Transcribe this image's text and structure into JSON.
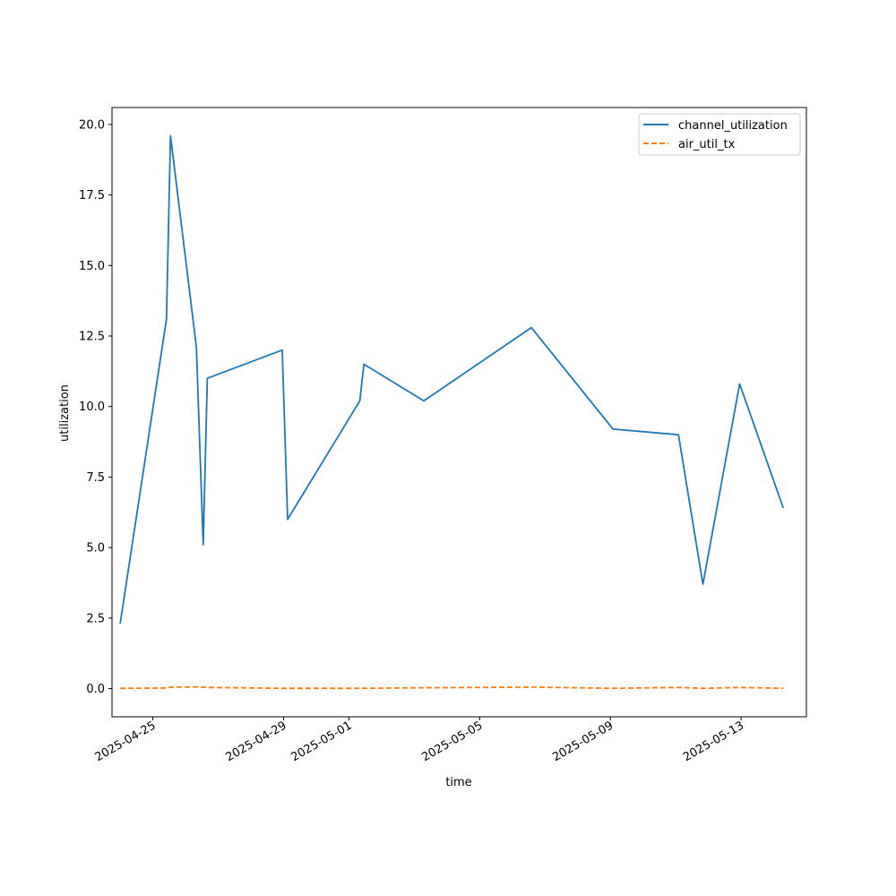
{
  "chart_data": {
    "type": "line",
    "title": "",
    "xlabel": "time",
    "ylabel": "utilization",
    "x_ticks": [
      "2025-04-25",
      "2025-04-29",
      "2025-05-01",
      "2025-05-05",
      "2025-05-09",
      "2025-05-13"
    ],
    "y_ticks": [
      0.0,
      2.5,
      5.0,
      7.5,
      10.0,
      12.5,
      15.0,
      17.5,
      20.0
    ],
    "y_tick_labels": [
      "0.0",
      "2.5",
      "5.0",
      "7.5",
      "10.0",
      "12.5",
      "15.0",
      "17.5",
      "20.0"
    ],
    "xlim": [
      "2025-04-23T18:00",
      "2025-05-15T00:00"
    ],
    "ylim": [
      -1.0,
      20.6
    ],
    "grid": false,
    "legend_position": "top-right",
    "series": [
      {
        "name": "channel_utilization",
        "color": "#1f77b4",
        "style": "solid",
        "points": [
          {
            "x": "2025-04-24T00:00",
            "y": 2.3
          },
          {
            "x": "2025-04-25T10:00",
            "y": 13.1
          },
          {
            "x": "2025-04-25T13:00",
            "y": 19.6
          },
          {
            "x": "2025-04-26T08:00",
            "y": 12.1
          },
          {
            "x": "2025-04-26T13:00",
            "y": 5.1
          },
          {
            "x": "2025-04-26T16:00",
            "y": 11.0
          },
          {
            "x": "2025-04-28T23:00",
            "y": 12.0
          },
          {
            "x": "2025-04-29T03:00",
            "y": 6.0
          },
          {
            "x": "2025-05-01T08:00",
            "y": 10.2
          },
          {
            "x": "2025-05-01T11:00",
            "y": 11.5
          },
          {
            "x": "2025-05-03T07:00",
            "y": 10.2
          },
          {
            "x": "2025-05-06T14:00",
            "y": 12.8
          },
          {
            "x": "2025-05-09T02:00",
            "y": 9.2
          },
          {
            "x": "2025-05-11T02:00",
            "y": 9.0
          },
          {
            "x": "2025-05-11T20:00",
            "y": 3.7
          },
          {
            "x": "2025-05-12T23:00",
            "y": 10.8
          },
          {
            "x": "2025-05-14T07:00",
            "y": 6.4
          }
        ]
      },
      {
        "name": "air_util_tx",
        "color": "#ff7f0e",
        "style": "dashed",
        "points": [
          {
            "x": "2025-04-24T00:00",
            "y": 0.01
          },
          {
            "x": "2025-04-25T10:00",
            "y": 0.02
          },
          {
            "x": "2025-04-25T13:00",
            "y": 0.05
          },
          {
            "x": "2025-04-26T08:00",
            "y": 0.06
          },
          {
            "x": "2025-04-26T16:00",
            "y": 0.04
          },
          {
            "x": "2025-04-28T23:00",
            "y": 0.01
          },
          {
            "x": "2025-05-01T08:00",
            "y": 0.01
          },
          {
            "x": "2025-05-03T07:00",
            "y": 0.03
          },
          {
            "x": "2025-05-06T14:00",
            "y": 0.05
          },
          {
            "x": "2025-05-09T02:00",
            "y": 0.01
          },
          {
            "x": "2025-05-11T02:00",
            "y": 0.04
          },
          {
            "x": "2025-05-11T20:00",
            "y": 0.01
          },
          {
            "x": "2025-05-12T23:00",
            "y": 0.04
          },
          {
            "x": "2025-05-14T07:00",
            "y": 0.01
          }
        ]
      }
    ]
  }
}
